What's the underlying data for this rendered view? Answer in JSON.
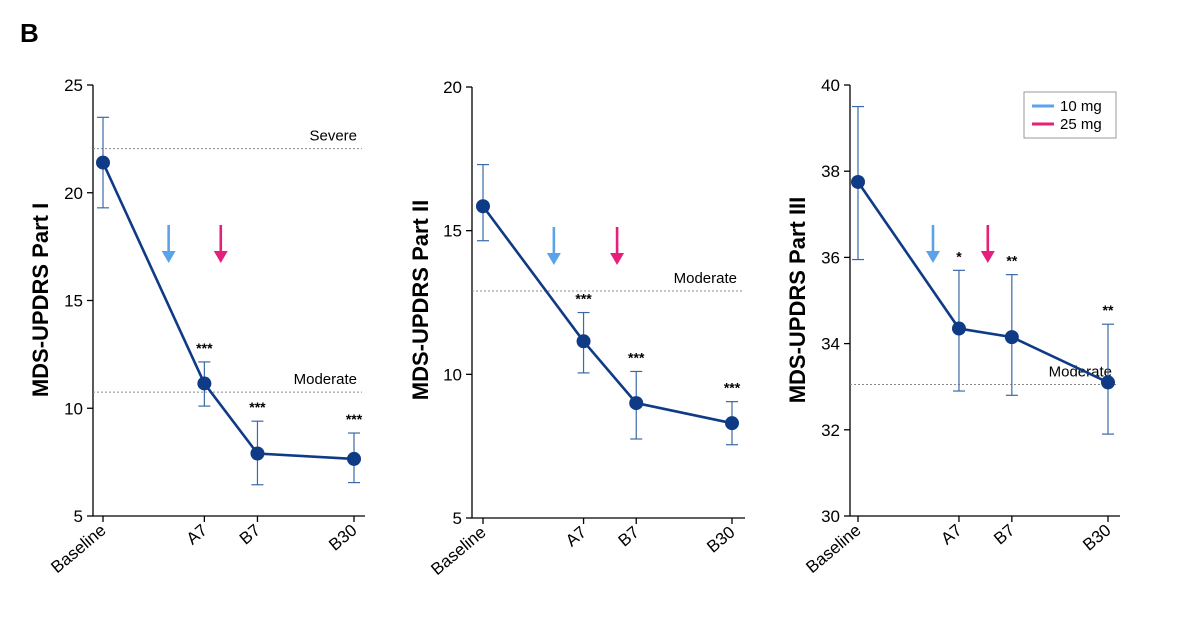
{
  "panel_letter": "B",
  "chart_data": [
    {
      "type": "line",
      "ylabel": "MDS-UPDRS Part I",
      "ylim": [
        5,
        25
      ],
      "yticks": [
        5,
        10,
        15,
        20,
        25
      ],
      "categories": [
        "Baseline",
        "A7",
        "B7",
        "B30"
      ],
      "x": [
        0,
        1.05,
        1.6,
        2.6
      ],
      "series": [
        {
          "values": [
            21.4,
            11.15,
            7.9,
            7.65
          ],
          "err_low": [
            19.3,
            10.1,
            6.45,
            6.55
          ],
          "err_high": [
            23.5,
            12.15,
            9.4,
            8.85
          ],
          "significance": [
            "",
            "***",
            "***",
            "***"
          ],
          "color": "#0f3a85"
        }
      ],
      "reference_lines": [
        {
          "label": "Severe",
          "value": 22.05
        },
        {
          "label": "Moderate",
          "value": 10.75
        }
      ],
      "dose_arrows": [
        {
          "dose": "10 mg",
          "x": 0.68,
          "color": "#5aa3e8"
        },
        {
          "dose": "25 mg",
          "x": 1.22,
          "color": "#e6207a"
        }
      ]
    },
    {
      "type": "line",
      "ylabel": "MDS-UPDRS Part II",
      "ylim": [
        5,
        20
      ],
      "yticks": [
        5,
        10,
        15,
        20
      ],
      "categories": [
        "Baseline",
        "A7",
        "B7",
        "B30"
      ],
      "x": [
        0,
        1.05,
        1.6,
        2.6
      ],
      "series": [
        {
          "values": [
            15.85,
            11.15,
            9.0,
            8.3
          ],
          "err_low": [
            14.65,
            10.05,
            7.75,
            7.55
          ],
          "err_high": [
            17.3,
            12.15,
            10.1,
            9.05
          ],
          "significance": [
            "",
            "***",
            "***",
            "***"
          ],
          "color": "#0f3a85"
        }
      ],
      "reference_lines": [
        {
          "label": "Moderate",
          "value": 12.9
        }
      ],
      "dose_arrows": [
        {
          "dose": "10 mg",
          "x": 0.74,
          "color": "#5aa3e8"
        },
        {
          "dose": "25 mg",
          "x": 1.4,
          "color": "#e6207a"
        }
      ]
    },
    {
      "type": "line",
      "ylabel": "MDS-UPDRS Part III",
      "ylim": [
        30,
        40
      ],
      "yticks": [
        30,
        32,
        34,
        36,
        38,
        40
      ],
      "categories": [
        "Baseline",
        "A7",
        "B7",
        "B30"
      ],
      "x": [
        0,
        1.05,
        1.6,
        2.6
      ],
      "series": [
        {
          "values": [
            37.75,
            34.35,
            34.15,
            33.1
          ],
          "err_low": [
            35.95,
            32.9,
            32.8,
            31.9
          ],
          "err_high": [
            39.5,
            35.7,
            35.6,
            34.45
          ],
          "significance": [
            "",
            "*",
            "**",
            "**"
          ],
          "color": "#0f3a85"
        }
      ],
      "reference_lines": [
        {
          "label": "Moderate",
          "value": 33.05
        }
      ],
      "dose_arrows": [
        {
          "dose": "10 mg",
          "x": 0.78,
          "color": "#5aa3e8"
        },
        {
          "dose": "25 mg",
          "x": 1.35,
          "color": "#e6207a"
        }
      ],
      "legend": {
        "placement": "top-right",
        "entries": [
          {
            "label": "10 mg",
            "color": "#5aa3e8"
          },
          {
            "label": "25 mg",
            "color": "#e6207a"
          }
        ]
      }
    }
  ]
}
